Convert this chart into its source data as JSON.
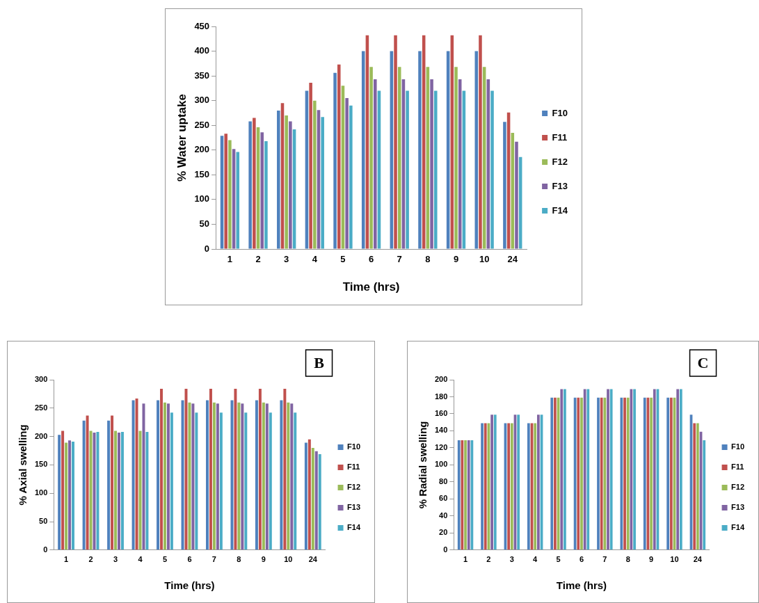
{
  "chart_data": [
    {
      "type": "bar",
      "xlabel": "Time (hrs)",
      "ylabel": "% Water uptake",
      "categories": [
        "1",
        "2",
        "3",
        "4",
        "5",
        "6",
        "7",
        "8",
        "9",
        "10",
        "24"
      ],
      "series": [
        {
          "name": "F10",
          "color": "#4f81bd",
          "values": [
            229,
            258,
            280,
            320,
            356,
            400,
            400,
            400,
            400,
            400,
            257
          ]
        },
        {
          "name": "F11",
          "color": "#c0504d",
          "values": [
            233,
            265,
            295,
            336,
            373,
            432,
            432,
            432,
            432,
            432,
            276
          ]
        },
        {
          "name": "F12",
          "color": "#9bbb59",
          "values": [
            220,
            246,
            270,
            300,
            330,
            368,
            368,
            368,
            368,
            368,
            235
          ]
        },
        {
          "name": "F13",
          "color": "#8064a2",
          "values": [
            202,
            236,
            258,
            281,
            305,
            343,
            343,
            343,
            343,
            343,
            217
          ]
        },
        {
          "name": "F14",
          "color": "#4bacc6",
          "values": [
            196,
            218,
            242,
            267,
            290,
            320,
            320,
            320,
            320,
            320,
            186
          ]
        }
      ],
      "ylim": [
        0,
        450
      ],
      "yticks": [
        0,
        50,
        100,
        150,
        200,
        250,
        300,
        350,
        400,
        450
      ],
      "grid": false,
      "legend": "right"
    },
    {
      "type": "bar",
      "xlabel": "Time (hrs)",
      "ylabel": "% Axial swelling",
      "annotations": [
        "B"
      ],
      "categories": [
        "1",
        "2",
        "3",
        "4",
        "5",
        "6",
        "7",
        "8",
        "9",
        "10",
        "24"
      ],
      "series": [
        {
          "name": "F10",
          "color": "#4f81bd",
          "values": [
            203,
            228,
            228,
            264,
            264,
            264,
            264,
            264,
            264,
            264,
            189
          ]
        },
        {
          "name": "F11",
          "color": "#c0504d",
          "values": [
            210,
            237,
            237,
            267,
            284,
            284,
            284,
            284,
            284,
            284,
            195
          ]
        },
        {
          "name": "F12",
          "color": "#9bbb59",
          "values": [
            189,
            210,
            210,
            210,
            260,
            260,
            260,
            260,
            260,
            260,
            180
          ]
        },
        {
          "name": "F13",
          "color": "#8064a2",
          "values": [
            193,
            207,
            207,
            258,
            258,
            258,
            258,
            258,
            258,
            258,
            174
          ]
        },
        {
          "name": "F14",
          "color": "#4bacc6",
          "values": [
            191,
            208,
            208,
            208,
            242,
            242,
            242,
            242,
            242,
            242,
            169
          ]
        }
      ],
      "ylim": [
        0,
        300
      ],
      "yticks": [
        0,
        50,
        100,
        150,
        200,
        250,
        300
      ],
      "grid": false,
      "legend": "right"
    },
    {
      "type": "bar",
      "xlabel": "Time (hrs)",
      "ylabel": "% Radial swelling",
      "annotations": [
        "C"
      ],
      "categories": [
        "1",
        "2",
        "3",
        "4",
        "5",
        "6",
        "7",
        "8",
        "9",
        "10",
        "24"
      ],
      "series": [
        {
          "name": "F10",
          "color": "#4f81bd",
          "values": [
            129,
            149,
            149,
            149,
            179,
            179,
            179,
            179,
            179,
            179,
            159
          ]
        },
        {
          "name": "F11",
          "color": "#c0504d",
          "values": [
            129,
            149,
            149,
            149,
            179,
            179,
            179,
            179,
            179,
            179,
            149
          ]
        },
        {
          "name": "F12",
          "color": "#9bbb59",
          "values": [
            129,
            149,
            149,
            149,
            179,
            179,
            179,
            179,
            179,
            179,
            149
          ]
        },
        {
          "name": "F13",
          "color": "#8064a2",
          "values": [
            129,
            159,
            159,
            159,
            189,
            189,
            189,
            189,
            189,
            189,
            139
          ]
        },
        {
          "name": "F14",
          "color": "#4bacc6",
          "values": [
            129,
            159,
            159,
            159,
            189,
            189,
            189,
            189,
            189,
            189,
            129
          ]
        }
      ],
      "ylim": [
        0,
        200
      ],
      "yticks": [
        0,
        20,
        40,
        60,
        80,
        100,
        120,
        140,
        160,
        180,
        200
      ],
      "grid": false,
      "legend": "right"
    }
  ]
}
